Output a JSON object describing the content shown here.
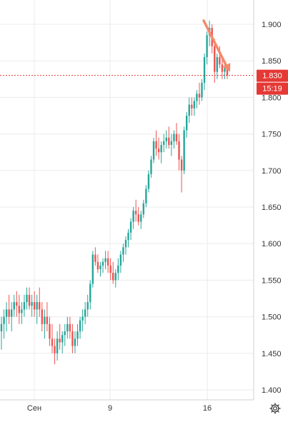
{
  "chart_data": {
    "type": "candlestick",
    "x_tick_labels": [
      "Сен",
      "9",
      "16"
    ],
    "y_axis": {
      "ticks": [
        "1.900",
        "1.850",
        "1.800",
        "1.750",
        "1.700",
        "1.650",
        "1.600",
        "1.550",
        "1.500",
        "1.450",
        "1.400"
      ],
      "ylim": [
        1.395,
        1.917
      ]
    },
    "price_label": "1.830",
    "time_label": "15:19",
    "last_price": 1.83,
    "grid": true,
    "annotation": {
      "type": "arrow",
      "from": [
        285,
        1.905
      ],
      "to": [
        322,
        1.835
      ]
    },
    "candles": [
      {
        "o": 1.48,
        "h": 1.5,
        "l": 1.455,
        "c": 1.49
      },
      {
        "o": 1.49,
        "h": 1.51,
        "l": 1.47,
        "c": 1.5
      },
      {
        "o": 1.5,
        "h": 1.52,
        "l": 1.48,
        "c": 1.51
      },
      {
        "o": 1.51,
        "h": 1.53,
        "l": 1.49,
        "c": 1.5
      },
      {
        "o": 1.5,
        "h": 1.52,
        "l": 1.48,
        "c": 1.51
      },
      {
        "o": 1.51,
        "h": 1.53,
        "l": 1.5,
        "c": 1.52
      },
      {
        "o": 1.52,
        "h": 1.535,
        "l": 1.5,
        "c": 1.515
      },
      {
        "o": 1.515,
        "h": 1.53,
        "l": 1.49,
        "c": 1.505
      },
      {
        "o": 1.505,
        "h": 1.52,
        "l": 1.49,
        "c": 1.51
      },
      {
        "o": 1.51,
        "h": 1.53,
        "l": 1.5,
        "c": 1.52
      },
      {
        "o": 1.52,
        "h": 1.54,
        "l": 1.51,
        "c": 1.53
      },
      {
        "o": 1.53,
        "h": 1.54,
        "l": 1.51,
        "c": 1.515
      },
      {
        "o": 1.515,
        "h": 1.53,
        "l": 1.5,
        "c": 1.52
      },
      {
        "o": 1.52,
        "h": 1.535,
        "l": 1.5,
        "c": 1.51
      },
      {
        "o": 1.51,
        "h": 1.53,
        "l": 1.49,
        "c": 1.52
      },
      {
        "o": 1.52,
        "h": 1.54,
        "l": 1.5,
        "c": 1.51
      },
      {
        "o": 1.51,
        "h": 1.52,
        "l": 1.48,
        "c": 1.49
      },
      {
        "o": 1.49,
        "h": 1.51,
        "l": 1.47,
        "c": 1.5
      },
      {
        "o": 1.5,
        "h": 1.52,
        "l": 1.48,
        "c": 1.49
      },
      {
        "o": 1.49,
        "h": 1.5,
        "l": 1.46,
        "c": 1.47
      },
      {
        "o": 1.47,
        "h": 1.49,
        "l": 1.45,
        "c": 1.46
      },
      {
        "o": 1.46,
        "h": 1.47,
        "l": 1.435,
        "c": 1.45
      },
      {
        "o": 1.45,
        "h": 1.48,
        "l": 1.44,
        "c": 1.47
      },
      {
        "o": 1.47,
        "h": 1.49,
        "l": 1.455,
        "c": 1.465
      },
      {
        "o": 1.465,
        "h": 1.48,
        "l": 1.45,
        "c": 1.475
      },
      {
        "o": 1.475,
        "h": 1.49,
        "l": 1.46,
        "c": 1.48
      },
      {
        "o": 1.48,
        "h": 1.5,
        "l": 1.47,
        "c": 1.49
      },
      {
        "o": 1.49,
        "h": 1.5,
        "l": 1.47,
        "c": 1.48
      },
      {
        "o": 1.48,
        "h": 1.49,
        "l": 1.45,
        "c": 1.46
      },
      {
        "o": 1.46,
        "h": 1.48,
        "l": 1.45,
        "c": 1.47
      },
      {
        "o": 1.47,
        "h": 1.49,
        "l": 1.46,
        "c": 1.48
      },
      {
        "o": 1.48,
        "h": 1.5,
        "l": 1.47,
        "c": 1.495
      },
      {
        "o": 1.495,
        "h": 1.51,
        "l": 1.48,
        "c": 1.5
      },
      {
        "o": 1.5,
        "h": 1.52,
        "l": 1.49,
        "c": 1.51
      },
      {
        "o": 1.51,
        "h": 1.53,
        "l": 1.5,
        "c": 1.52
      },
      {
        "o": 1.52,
        "h": 1.55,
        "l": 1.51,
        "c": 1.545
      },
      {
        "o": 1.545,
        "h": 1.59,
        "l": 1.54,
        "c": 1.585
      },
      {
        "o": 1.585,
        "h": 1.595,
        "l": 1.57,
        "c": 1.575
      },
      {
        "o": 1.575,
        "h": 1.585,
        "l": 1.56,
        "c": 1.565
      },
      {
        "o": 1.565,
        "h": 1.575,
        "l": 1.555,
        "c": 1.57
      },
      {
        "o": 1.57,
        "h": 1.58,
        "l": 1.56,
        "c": 1.575
      },
      {
        "o": 1.575,
        "h": 1.59,
        "l": 1.565,
        "c": 1.58
      },
      {
        "o": 1.58,
        "h": 1.59,
        "l": 1.56,
        "c": 1.57
      },
      {
        "o": 1.57,
        "h": 1.58,
        "l": 1.55,
        "c": 1.56
      },
      {
        "o": 1.56,
        "h": 1.575,
        "l": 1.545,
        "c": 1.55
      },
      {
        "o": 1.55,
        "h": 1.565,
        "l": 1.54,
        "c": 1.56
      },
      {
        "o": 1.56,
        "h": 1.58,
        "l": 1.55,
        "c": 1.57
      },
      {
        "o": 1.57,
        "h": 1.59,
        "l": 1.56,
        "c": 1.585
      },
      {
        "o": 1.585,
        "h": 1.6,
        "l": 1.575,
        "c": 1.595
      },
      {
        "o": 1.595,
        "h": 1.61,
        "l": 1.585,
        "c": 1.605
      },
      {
        "o": 1.605,
        "h": 1.62,
        "l": 1.595,
        "c": 1.615
      },
      {
        "o": 1.615,
        "h": 1.635,
        "l": 1.605,
        "c": 1.63
      },
      {
        "o": 1.63,
        "h": 1.65,
        "l": 1.62,
        "c": 1.645
      },
      {
        "o": 1.645,
        "h": 1.66,
        "l": 1.63,
        "c": 1.64
      },
      {
        "o": 1.64,
        "h": 1.65,
        "l": 1.625,
        "c": 1.63
      },
      {
        "o": 1.63,
        "h": 1.645,
        "l": 1.62,
        "c": 1.64
      },
      {
        "o": 1.64,
        "h": 1.66,
        "l": 1.635,
        "c": 1.655
      },
      {
        "o": 1.655,
        "h": 1.68,
        "l": 1.65,
        "c": 1.675
      },
      {
        "o": 1.675,
        "h": 1.7,
        "l": 1.67,
        "c": 1.695
      },
      {
        "o": 1.695,
        "h": 1.72,
        "l": 1.69,
        "c": 1.715
      },
      {
        "o": 1.715,
        "h": 1.745,
        "l": 1.71,
        "c": 1.74
      },
      {
        "o": 1.74,
        "h": 1.755,
        "l": 1.72,
        "c": 1.73
      },
      {
        "o": 1.73,
        "h": 1.745,
        "l": 1.715,
        "c": 1.725
      },
      {
        "o": 1.725,
        "h": 1.74,
        "l": 1.71,
        "c": 1.735
      },
      {
        "o": 1.735,
        "h": 1.75,
        "l": 1.725,
        "c": 1.74
      },
      {
        "o": 1.74,
        "h": 1.755,
        "l": 1.73,
        "c": 1.745
      },
      {
        "o": 1.745,
        "h": 1.76,
        "l": 1.73,
        "c": 1.735
      },
      {
        "o": 1.735,
        "h": 1.75,
        "l": 1.72,
        "c": 1.74
      },
      {
        "o": 1.74,
        "h": 1.755,
        "l": 1.73,
        "c": 1.75
      },
      {
        "o": 1.75,
        "h": 1.765,
        "l": 1.735,
        "c": 1.74
      },
      {
        "o": 1.74,
        "h": 1.75,
        "l": 1.7,
        "c": 1.715
      },
      {
        "o": 1.715,
        "h": 1.72,
        "l": 1.67,
        "c": 1.7
      },
      {
        "o": 1.7,
        "h": 1.76,
        "l": 1.695,
        "c": 1.755
      },
      {
        "o": 1.755,
        "h": 1.78,
        "l": 1.745,
        "c": 1.775
      },
      {
        "o": 1.775,
        "h": 1.8,
        "l": 1.765,
        "c": 1.79
      },
      {
        "o": 1.79,
        "h": 1.8,
        "l": 1.775,
        "c": 1.785
      },
      {
        "o": 1.785,
        "h": 1.8,
        "l": 1.775,
        "c": 1.795
      },
      {
        "o": 1.795,
        "h": 1.81,
        "l": 1.785,
        "c": 1.805
      },
      {
        "o": 1.805,
        "h": 1.82,
        "l": 1.79,
        "c": 1.8
      },
      {
        "o": 1.8,
        "h": 1.825,
        "l": 1.795,
        "c": 1.82
      },
      {
        "o": 1.82,
        "h": 1.86,
        "l": 1.81,
        "c": 1.855
      },
      {
        "o": 1.855,
        "h": 1.89,
        "l": 1.845,
        "c": 1.885
      },
      {
        "o": 1.885,
        "h": 1.905,
        "l": 1.87,
        "c": 1.895
      },
      {
        "o": 1.895,
        "h": 1.9,
        "l": 1.86,
        "c": 1.87
      },
      {
        "o": 1.87,
        "h": 1.88,
        "l": 1.82,
        "c": 1.835
      },
      {
        "o": 1.835,
        "h": 1.86,
        "l": 1.825,
        "c": 1.855
      },
      {
        "o": 1.855,
        "h": 1.87,
        "l": 1.84,
        "c": 1.845
      },
      {
        "o": 1.845,
        "h": 1.855,
        "l": 1.825,
        "c": 1.835
      },
      {
        "o": 1.835,
        "h": 1.85,
        "l": 1.825,
        "c": 1.84
      },
      {
        "o": 1.84,
        "h": 1.845,
        "l": 1.825,
        "c": 1.83
      }
    ]
  },
  "colors": {
    "up": "#26a69a",
    "down": "#ef5350",
    "grid": "#ebebeb",
    "axis_text": "#333333",
    "price_line": "#e53935",
    "arrow": "#f28b6c",
    "background": "#ffffff"
  },
  "settings_icon": "gear-icon"
}
